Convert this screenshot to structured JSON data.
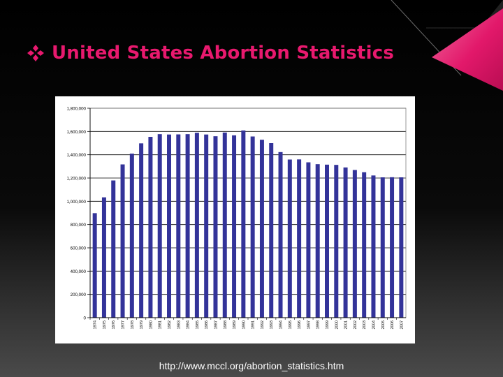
{
  "slide": {
    "title": "United States Abortion Statistics",
    "bullet_icon": "four-diamond-bullet-icon",
    "source_url": "http://www.mccl.org/abortion_statistics.htm",
    "colors": {
      "title": "#e8196e",
      "accent": "#d4105c",
      "bar": "#333399",
      "background": "#000000"
    }
  },
  "chart_data": {
    "type": "bar",
    "title": "",
    "xlabel": "",
    "ylabel": "",
    "ylim": [
      0,
      1800000
    ],
    "y_ticks": [
      0,
      200000,
      400000,
      600000,
      800000,
      1000000,
      1200000,
      1400000,
      1600000,
      1800000
    ],
    "y_tick_labels": [
      "0",
      "200,000",
      "400,000",
      "600,000",
      "800,000",
      "1,000,000",
      "1,200,000",
      "1,400,000",
      "1,600,000",
      "1,800,000"
    ],
    "grid": true,
    "legend": "none",
    "categories": [
      "1974",
      "1975",
      "1976",
      "1977",
      "1978",
      "1979",
      "1980",
      "1981",
      "1982",
      "1983",
      "1984",
      "1985",
      "1986",
      "1987",
      "1988",
      "1989",
      "1990",
      "1991",
      "1992",
      "1993",
      "1994",
      "1995",
      "1996",
      "1997",
      "1998",
      "1999",
      "2000",
      "2001",
      "2002",
      "2003",
      "2004",
      "2005",
      "2006",
      "2007"
    ],
    "values": [
      898000,
      1034000,
      1179000,
      1317000,
      1410000,
      1498000,
      1554000,
      1577000,
      1574000,
      1575000,
      1577000,
      1589000,
      1574000,
      1559000,
      1591000,
      1567000,
      1609000,
      1557000,
      1529000,
      1500000,
      1423000,
      1359000,
      1360000,
      1335000,
      1319000,
      1315000,
      1313000,
      1291000,
      1269000,
      1250000,
      1222000,
      1206000,
      1207000,
      1206000
    ]
  }
}
